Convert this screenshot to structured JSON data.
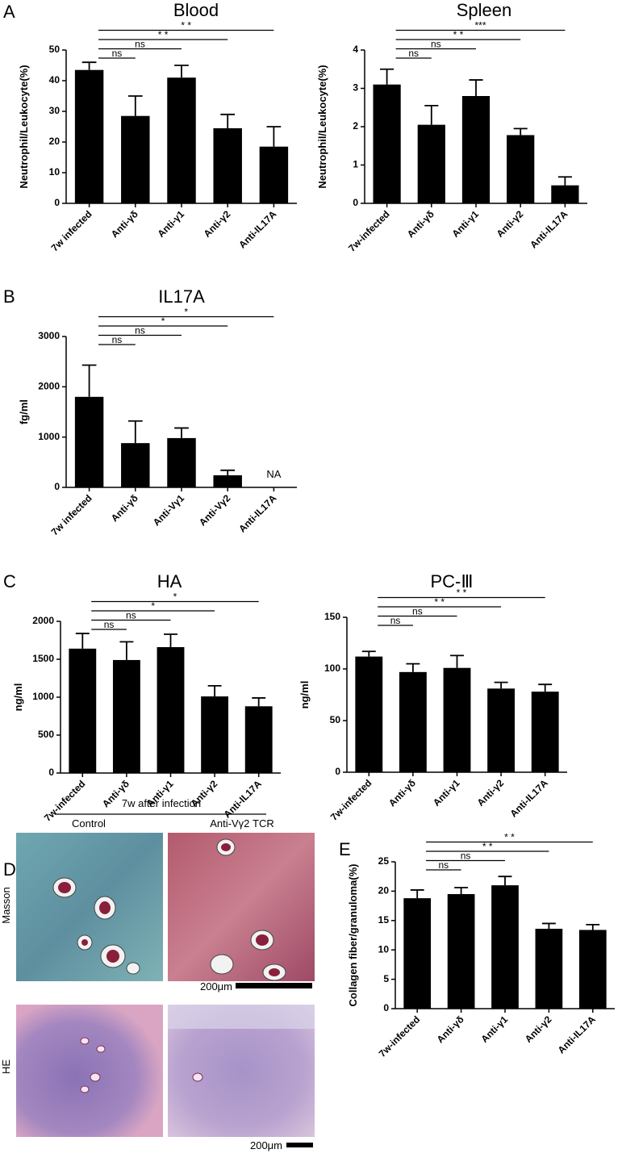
{
  "panel_labels": [
    "A",
    "B",
    "C",
    "D",
    "E"
  ],
  "histology": {
    "header": "7w after infection",
    "columns": [
      "Control",
      "Anti-Vγ2 TCR"
    ],
    "rows": [
      "Masson",
      "HE"
    ],
    "scale_bars": [
      "200μm",
      "200μm"
    ]
  },
  "chart_data": [
    {
      "type": "bar",
      "title": "Blood",
      "ylabel": "Neutrophil/Leukocyte(%)",
      "categories": [
        "7w infected",
        "Anti-γδ",
        "Anti-γ1",
        "Anti-γ2",
        "Anti-IL17A"
      ],
      "values": [
        43.5,
        28.5,
        41,
        24.5,
        18.5
      ],
      "errors": [
        2.5,
        6.5,
        4,
        4.5,
        6.5
      ],
      "color": "#000000",
      "ylim": [
        0,
        50
      ],
      "yticks": [
        0,
        10,
        20,
        30,
        40,
        50
      ],
      "significance": [
        "ns",
        "ns",
        "* *",
        "* *"
      ]
    },
    {
      "type": "bar",
      "title": "Spleen",
      "ylabel": "Neutrophil/Leukocyte(%)",
      "categories": [
        "7w-infected",
        "Anti-γδ",
        "Anti-γ1",
        "Anti-γ2",
        "Anti-IL17A"
      ],
      "values": [
        3.1,
        2.05,
        2.8,
        1.78,
        0.47
      ],
      "errors": [
        0.4,
        0.5,
        0.42,
        0.17,
        0.22
      ],
      "color": "#000000",
      "ylim": [
        0,
        4
      ],
      "yticks": [
        0,
        1,
        2,
        3,
        4
      ],
      "significance": [
        "ns",
        "ns",
        "* *",
        "***"
      ]
    },
    {
      "type": "bar",
      "title": "IL17A",
      "ylabel": "fg/ml",
      "categories": [
        "7w infected",
        "Anti-γδ",
        "Anti-Vγ1",
        "Anti-Vγ2",
        "Anti-IL17A"
      ],
      "values": [
        1800,
        880,
        980,
        240,
        null
      ],
      "errors": [
        630,
        440,
        200,
        100,
        null
      ],
      "missing_label": "NA",
      "color": "#000000",
      "ylim": [
        0,
        3000
      ],
      "yticks": [
        0,
        1000,
        2000,
        3000
      ],
      "significance": [
        "ns",
        "ns",
        "*",
        "*"
      ]
    },
    {
      "type": "bar",
      "title": "HA",
      "ylabel": "ng/ml",
      "categories": [
        "7w-infected",
        "Anti-γδ",
        "Anti-γ1",
        "Anti-γ2",
        "Anti-IL17A"
      ],
      "values": [
        1640,
        1490,
        1660,
        1010,
        880
      ],
      "errors": [
        200,
        240,
        170,
        140,
        110
      ],
      "color": "#000000",
      "ylim": [
        0,
        2000
      ],
      "yticks": [
        0,
        500,
        1000,
        1500,
        2000
      ],
      "significance": [
        "ns",
        "ns",
        "*",
        "*"
      ]
    },
    {
      "type": "bar",
      "title": "PC-Ⅲ",
      "ylabel": "ng/ml",
      "categories": [
        "7w-infected",
        "Anti-γδ",
        "Anti-γ1",
        "Anti-γ2",
        "Anti-IL17A"
      ],
      "values": [
        112,
        97,
        101,
        81,
        78
      ],
      "errors": [
        5,
        8,
        12,
        6,
        7
      ],
      "color": "#000000",
      "ylim": [
        0,
        150
      ],
      "yticks": [
        0,
        50,
        100,
        150
      ],
      "significance": [
        "ns",
        "ns",
        "* *",
        "* *"
      ]
    },
    {
      "type": "bar",
      "ylabel": "Collagen fiber/granuloma(%)",
      "categories": [
        "7w-infected",
        "Anti-γδ",
        "Anti-γ1",
        "Anti-γ2",
        "Anti-IL17A"
      ],
      "values": [
        18.8,
        19.5,
        21,
        13.6,
        13.4
      ],
      "errors": [
        1.4,
        1.1,
        1.5,
        0.9,
        0.9
      ],
      "color": "#000000",
      "ylim": [
        0,
        25
      ],
      "yticks": [
        0,
        5,
        10,
        15,
        20,
        25
      ],
      "significance": [
        "ns",
        "ns",
        "* *",
        "* *"
      ]
    }
  ]
}
